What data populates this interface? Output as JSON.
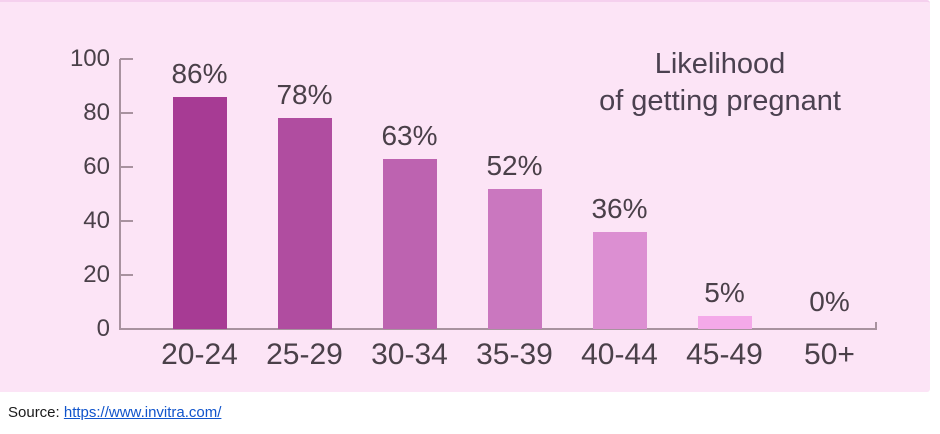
{
  "panel": {
    "background": "#fce4f6",
    "border_top_color": "#f5d0ee"
  },
  "chart_data": {
    "type": "bar",
    "title": "Likelihood of getting pregnant",
    "title_lines": {
      "line1": "Likelihood",
      "line2": "of getting pregnant"
    },
    "categories": [
      "20-24",
      "25-29",
      "30-34",
      "35-39",
      "40-44",
      "45-49",
      "50+"
    ],
    "values": [
      86,
      78,
      63,
      52,
      36,
      5,
      0
    ],
    "value_labels": [
      "86%",
      "78%",
      "63%",
      "52%",
      "36%",
      "5%",
      "0%"
    ],
    "bar_colors": [
      "#a73b94",
      "#b04da0",
      "#bd63b0",
      "#ca77bf",
      "#dc8fd2",
      "#f4a9e9",
      "none"
    ],
    "xlabel": "",
    "ylabel": "",
    "y_ticks": [
      0,
      20,
      40,
      60,
      80,
      100
    ],
    "ylim": [
      0,
      100
    ],
    "grid": false,
    "legend_position": "none",
    "axis_color": "#a8929f",
    "text_color": "#4a4049"
  },
  "source": {
    "label": "Source:",
    "link_text": "https://www.invitra.com/",
    "link_color": "#1155cc"
  }
}
